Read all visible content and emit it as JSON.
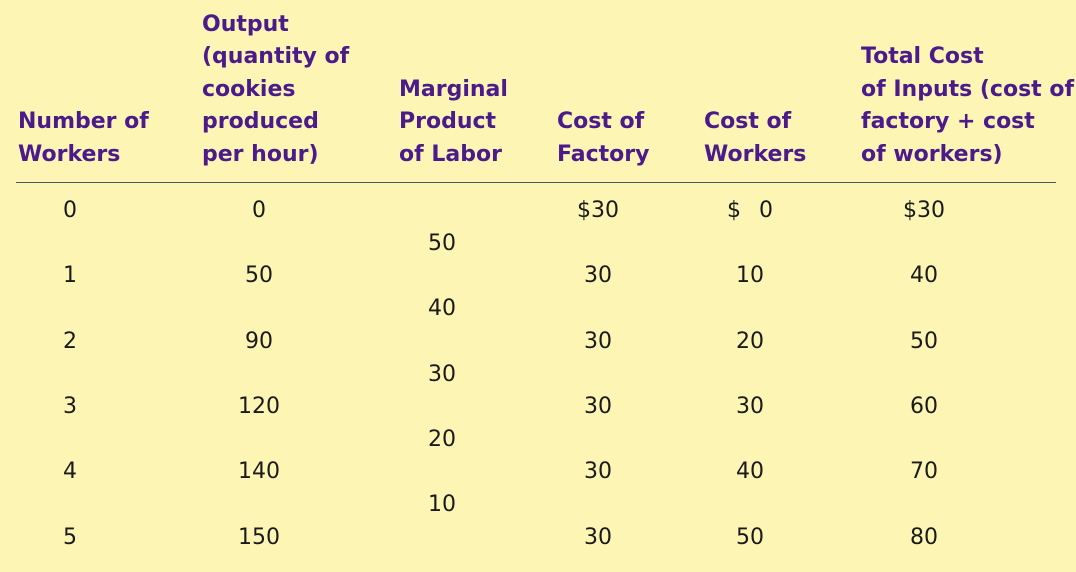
{
  "headers": [
    {
      "lines": [
        "Number of",
        "Workers"
      ]
    },
    {
      "lines": [
        "Output",
        "(quantity of",
        "cookies",
        "produced",
        "per hour)"
      ]
    },
    {
      "lines": [
        "Marginal",
        "Product",
        "of Labor"
      ]
    },
    {
      "lines": [
        "Cost of",
        "Factory"
      ]
    },
    {
      "lines": [
        "Cost of",
        "Workers"
      ]
    },
    {
      "lines": [
        "Total Cost",
        "of Inputs (cost of",
        "factory + cost",
        "of workers)"
      ]
    }
  ],
  "rows": [
    {
      "workers": "0",
      "output": "0",
      "cost_factory": "$30",
      "cost_workers": "$  0",
      "total_cost": "$30"
    },
    {
      "workers": "1",
      "output": "50",
      "cost_factory": "30",
      "cost_workers": "10",
      "total_cost": "40"
    },
    {
      "workers": "2",
      "output": "90",
      "cost_factory": "30",
      "cost_workers": "20",
      "total_cost": "50"
    },
    {
      "workers": "3",
      "output": "120",
      "cost_factory": "30",
      "cost_workers": "30",
      "total_cost": "60"
    },
    {
      "workers": "4",
      "output": "140",
      "cost_factory": "30",
      "cost_workers": "40",
      "total_cost": "70"
    },
    {
      "workers": "5",
      "output": "150",
      "cost_factory": "30",
      "cost_workers": "50",
      "total_cost": "80"
    }
  ],
  "marginal_product": [
    "50",
    "40",
    "30",
    "20",
    "10"
  ]
}
